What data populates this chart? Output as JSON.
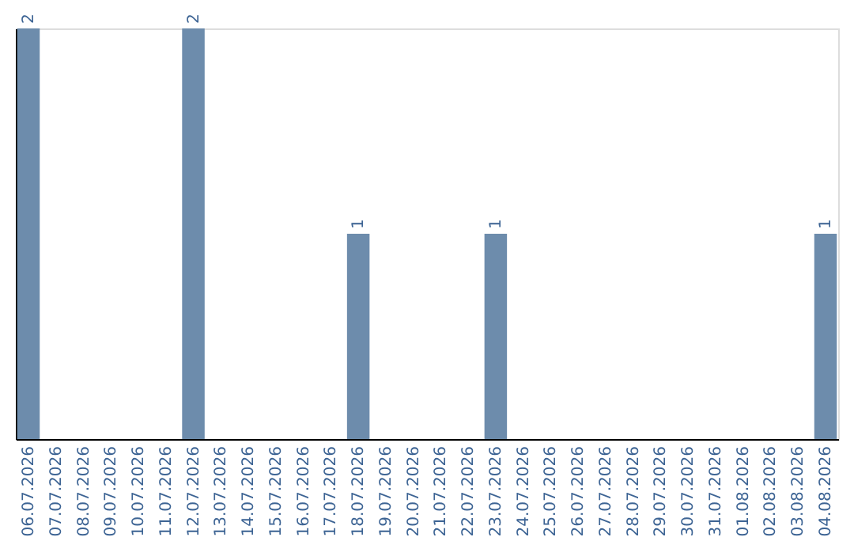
{
  "chart_data": {
    "type": "bar",
    "categories": [
      "06.07.2026",
      "07.07.2026",
      "08.07.2026",
      "09.07.2026",
      "10.07.2026",
      "11.07.2026",
      "12.07.2026",
      "13.07.2026",
      "14.07.2026",
      "15.07.2026",
      "16.07.2026",
      "17.07.2026",
      "18.07.2026",
      "19.07.2026",
      "20.07.2026",
      "21.07.2026",
      "22.07.2026",
      "23.07.2026",
      "24.07.2026",
      "25.07.2026",
      "26.07.2026",
      "27.07.2026",
      "28.07.2026",
      "29.07.2026",
      "30.07.2026",
      "31.07.2026",
      "01.08.2026",
      "02.08.2026",
      "03.08.2026",
      "04.08.2026"
    ],
    "values": [
      2,
      0,
      0,
      0,
      0,
      0,
      2,
      0,
      0,
      0,
      0,
      0,
      1,
      0,
      0,
      0,
      0,
      1,
      0,
      0,
      0,
      0,
      0,
      0,
      0,
      0,
      0,
      0,
      0,
      1
    ],
    "value_labels": [
      "2",
      null,
      null,
      null,
      null,
      null,
      "2",
      null,
      null,
      null,
      null,
      null,
      "1",
      null,
      null,
      null,
      null,
      "1",
      null,
      null,
      null,
      null,
      null,
      null,
      null,
      null,
      null,
      null,
      null,
      "1"
    ],
    "color": "#6d8cac",
    "grid": false
  }
}
